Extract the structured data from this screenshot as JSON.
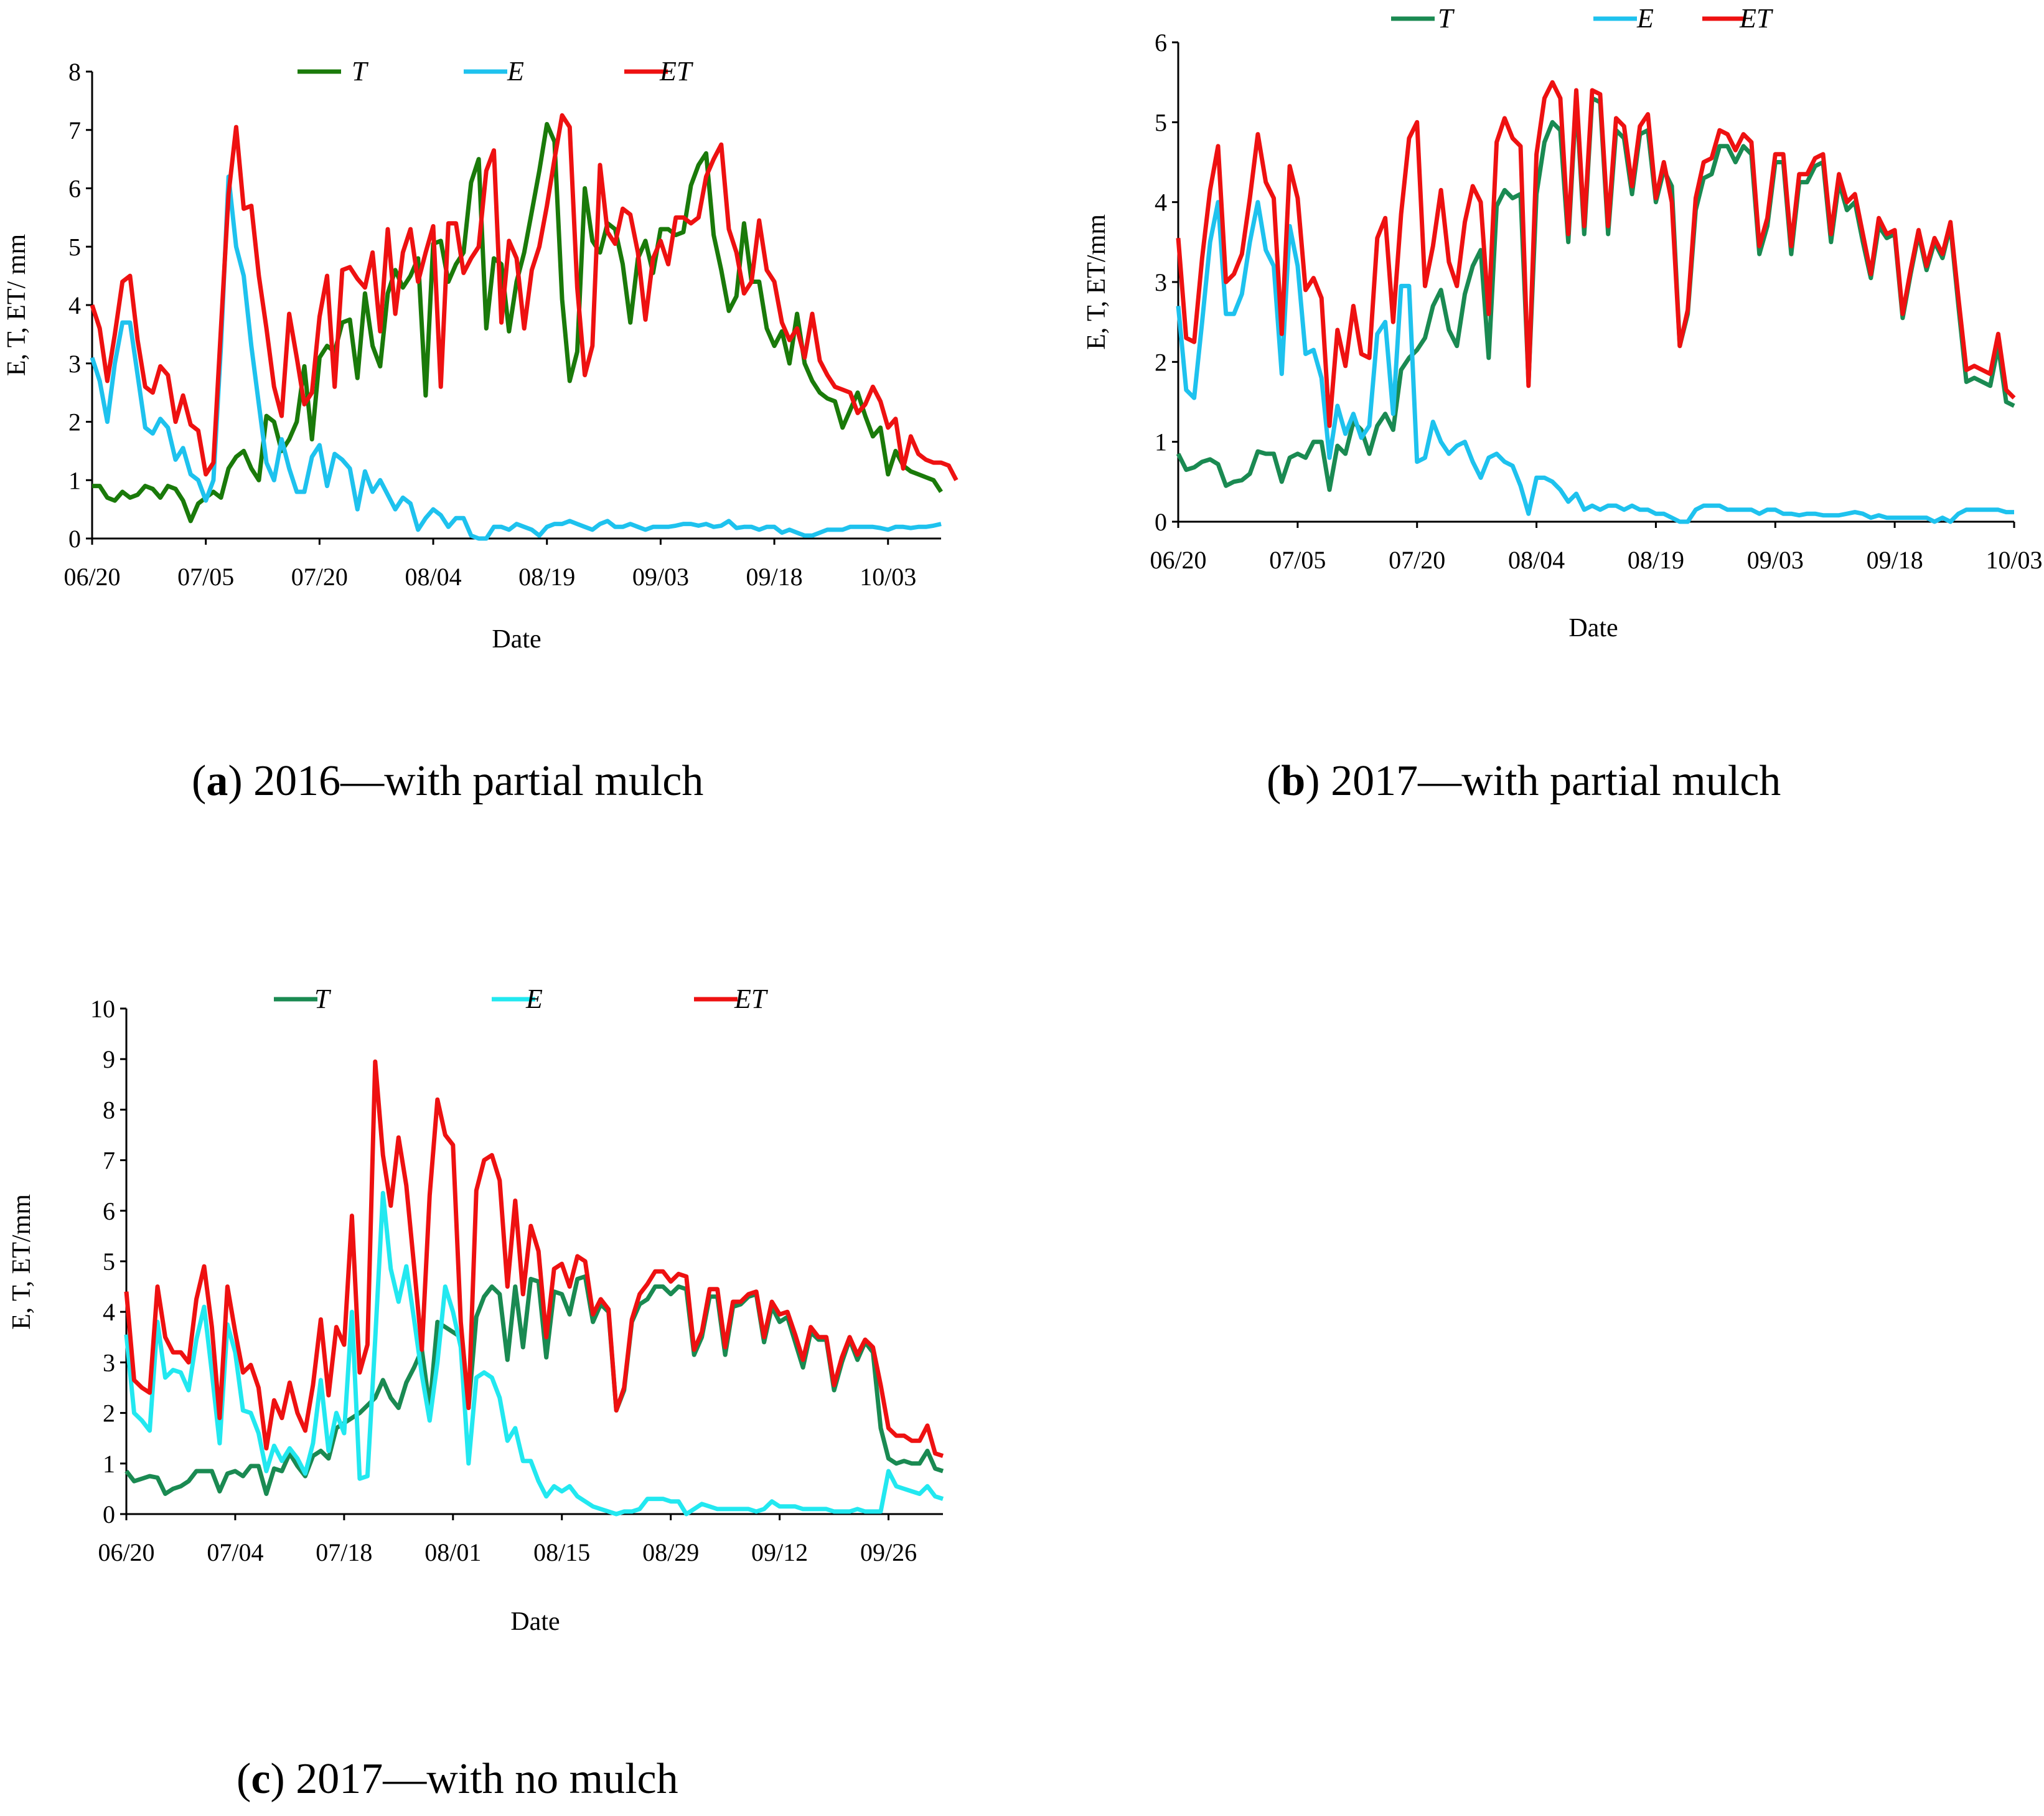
{
  "colors": {
    "T_a": "#1a7a0a",
    "T_bc": "#1a8a52",
    "E_ab": "#1ec2ee",
    "E_c": "#22e8f0",
    "ET": "#ee1111"
  },
  "captions": [
    {
      "letter": "a",
      "text": " 2016—with partial mulch"
    },
    {
      "letter": "b",
      "text": " 2017—with partial mulch"
    },
    {
      "letter": "c",
      "text": " 2017—with no mulch"
    }
  ],
  "chart_data": [
    {
      "id": "a",
      "type": "line",
      "xlabel": "Date",
      "ylabel": "E, T, ET/ mm",
      "ylim": [
        0,
        8
      ],
      "yticks": [
        0,
        1,
        2,
        3,
        4,
        5,
        6,
        7,
        8
      ],
      "xticks": [
        "06/20",
        "07/05",
        "07/20",
        "08/04",
        "08/19",
        "09/03",
        "09/18",
        "10/03"
      ],
      "start_date": "06/20",
      "legend": [
        "T",
        "E",
        "ET"
      ],
      "series": [
        {
          "name": "T",
          "values": [
            0.9,
            0.9,
            0.7,
            0.65,
            0.8,
            0.7,
            0.75,
            0.9,
            0.85,
            0.7,
            0.9,
            0.85,
            0.65,
            0.3,
            0.6,
            0.7,
            0.8,
            0.7,
            1.2,
            1.4,
            1.5,
            1.2,
            1.0,
            2.1,
            2.0,
            1.5,
            1.7,
            2.0,
            2.95,
            1.7,
            3.1,
            3.3,
            3.2,
            3.7,
            3.75,
            2.75,
            4.2,
            3.3,
            2.95,
            4.2,
            4.6,
            4.3,
            4.5,
            4.8,
            2.45,
            5.05,
            5.1,
            4.4,
            4.7,
            4.9,
            6.1,
            6.5,
            3.6,
            4.8,
            4.7,
            3.55,
            4.4,
            4.9,
            5.6,
            6.3,
            7.1,
            6.8,
            4.1,
            2.7,
            3.2,
            6.0,
            5.1,
            4.9,
            5.4,
            5.3,
            4.7,
            3.7,
            4.8,
            5.1,
            4.55,
            5.3,
            5.3,
            5.2,
            5.25,
            6.05,
            6.4,
            6.6,
            5.2,
            4.6,
            3.9,
            4.15,
            5.4,
            4.4,
            4.4,
            3.6,
            3.3,
            3.55,
            3.0,
            3.85,
            3.0,
            2.7,
            2.5,
            2.4,
            2.35,
            1.9,
            2.2,
            2.5,
            2.1,
            1.75,
            1.9,
            1.1,
            1.5,
            1.25,
            1.15,
            1.1,
            1.05,
            1.0,
            0.8
          ]
        },
        {
          "name": "E",
          "values": [
            3.1,
            2.7,
            2.0,
            3.0,
            3.7,
            3.7,
            2.8,
            1.9,
            1.8,
            2.05,
            1.9,
            1.35,
            1.55,
            1.1,
            1.0,
            0.65,
            1.0,
            3.3,
            6.2,
            5.0,
            4.5,
            3.3,
            2.3,
            1.3,
            1.0,
            1.7,
            1.2,
            0.8,
            0.8,
            1.4,
            1.6,
            0.9,
            1.45,
            1.35,
            1.2,
            0.5,
            1.15,
            0.8,
            1.0,
            0.75,
            0.5,
            0.7,
            0.6,
            0.15,
            0.35,
            0.5,
            0.4,
            0.2,
            0.35,
            0.35,
            0.05,
            0.0,
            0.0,
            0.2,
            0.2,
            0.15,
            0.25,
            0.2,
            0.15,
            0.05,
            0.2,
            0.25,
            0.25,
            0.3,
            0.25,
            0.2,
            0.15,
            0.25,
            0.3,
            0.2,
            0.2,
            0.25,
            0.2,
            0.15,
            0.2,
            0.2,
            0.2,
            0.22,
            0.25,
            0.25,
            0.22,
            0.25,
            0.2,
            0.22,
            0.3,
            0.18,
            0.2,
            0.2,
            0.15,
            0.2,
            0.2,
            0.1,
            0.15,
            0.1,
            0.05,
            0.05,
            0.1,
            0.15,
            0.15,
            0.15,
            0.2,
            0.2,
            0.2,
            0.2,
            0.18,
            0.15,
            0.2,
            0.2,
            0.18,
            0.2,
            0.2,
            0.22,
            0.25
          ]
        },
        {
          "name": "ET",
          "values": [
            4.0,
            3.6,
            2.7,
            3.5,
            4.4,
            4.5,
            3.4,
            2.6,
            2.5,
            2.95,
            2.8,
            2.0,
            2.45,
            1.95,
            1.85,
            1.1,
            1.3,
            3.6,
            5.9,
            7.05,
            5.65,
            5.7,
            4.5,
            3.6,
            2.6,
            2.1,
            3.85,
            3.1,
            2.3,
            2.5,
            3.8,
            4.5,
            2.6,
            4.6,
            4.65,
            4.45,
            4.3,
            4.9,
            3.55,
            5.3,
            3.85,
            4.9,
            5.3,
            4.4,
            4.9,
            5.35,
            2.6,
            5.4,
            5.4,
            4.55,
            4.8,
            5.0,
            6.3,
            6.65,
            3.7,
            5.1,
            4.8,
            3.6,
            4.6,
            5.0,
            5.7,
            6.5,
            7.25,
            7.05,
            4.3,
            2.8,
            3.3,
            6.4,
            5.25,
            5.05,
            5.65,
            5.55,
            4.9,
            3.75,
            4.8,
            5.1,
            4.7,
            5.5,
            5.5,
            5.4,
            5.5,
            6.2,
            6.5,
            6.75,
            5.3,
            4.9,
            4.2,
            4.4,
            5.45,
            4.6,
            4.4,
            3.7,
            3.4,
            3.6,
            3.1,
            3.85,
            3.05,
            2.8,
            2.6,
            2.55,
            2.5,
            2.15,
            2.3,
            2.6,
            2.35,
            1.9,
            2.05,
            1.2,
            1.75,
            1.45,
            1.35,
            1.3,
            1.3,
            1.25,
            1.0
          ]
        }
      ]
    },
    {
      "id": "b",
      "type": "line",
      "xlabel": "Date",
      "ylabel": "E, T, ET/mm",
      "ylim": [
        0,
        6
      ],
      "yticks": [
        0,
        1,
        2,
        3,
        4,
        5,
        6
      ],
      "xticks": [
        "06/20",
        "07/05",
        "07/20",
        "08/04",
        "08/19",
        "09/03",
        "09/18",
        "10/03"
      ],
      "start_date": "06/20",
      "legend": [
        "T",
        "E",
        "ET"
      ],
      "series": [
        {
          "name": "T",
          "values": [
            0.85,
            0.65,
            0.68,
            0.75,
            0.78,
            0.72,
            0.45,
            0.5,
            0.52,
            0.6,
            0.88,
            0.85,
            0.85,
            0.5,
            0.8,
            0.85,
            0.8,
            1.0,
            1.0,
            0.4,
            0.95,
            0.85,
            1.25,
            1.15,
            0.85,
            1.2,
            1.35,
            1.15,
            1.9,
            2.05,
            2.15,
            2.3,
            2.7,
            2.9,
            2.4,
            2.2,
            2.85,
            3.2,
            3.4,
            2.05,
            3.95,
            4.15,
            4.05,
            4.1,
            1.75,
            4.1,
            4.75,
            5.0,
            4.9,
            3.5,
            5.3,
            3.6,
            5.3,
            5.25,
            3.6,
            4.9,
            4.8,
            4.1,
            4.85,
            4.9,
            4.0,
            4.4,
            4.2,
            2.2,
            2.6,
            3.9,
            4.3,
            4.35,
            4.7,
            4.7,
            4.5,
            4.7,
            4.6,
            3.35,
            3.7,
            4.5,
            4.5,
            3.35,
            4.25,
            4.25,
            4.45,
            4.5,
            3.5,
            4.25,
            3.9,
            4.0,
            3.5,
            3.05,
            3.7,
            3.55,
            3.6,
            2.55,
            3.1,
            3.6,
            3.15,
            3.5,
            3.3,
            3.7,
            2.7,
            1.75,
            1.8,
            1.75,
            1.7,
            2.2,
            1.5,
            1.45
          ]
        },
        {
          "name": "E",
          "values": [
            2.7,
            1.65,
            1.55,
            2.5,
            3.5,
            4.0,
            2.6,
            2.6,
            2.85,
            3.5,
            4.0,
            3.4,
            3.2,
            1.85,
            3.7,
            3.2,
            2.1,
            2.15,
            1.8,
            0.8,
            1.45,
            1.1,
            1.35,
            1.05,
            1.2,
            2.35,
            2.5,
            1.35,
            2.95,
            2.95,
            0.75,
            0.8,
            1.25,
            1.0,
            0.85,
            0.95,
            1.0,
            0.75,
            0.55,
            0.8,
            0.85,
            0.75,
            0.7,
            0.45,
            0.1,
            0.55,
            0.55,
            0.5,
            0.4,
            0.25,
            0.35,
            0.15,
            0.2,
            0.15,
            0.2,
            0.2,
            0.15,
            0.2,
            0.15,
            0.15,
            0.1,
            0.1,
            0.05,
            0.0,
            0.0,
            0.15,
            0.2,
            0.2,
            0.2,
            0.15,
            0.15,
            0.15,
            0.15,
            0.1,
            0.15,
            0.15,
            0.1,
            0.1,
            0.08,
            0.1,
            0.1,
            0.08,
            0.08,
            0.08,
            0.1,
            0.12,
            0.1,
            0.05,
            0.08,
            0.05,
            0.05,
            0.05,
            0.05,
            0.05,
            0.05,
            0.0,
            0.05,
            0.0,
            0.1,
            0.15,
            0.15,
            0.15,
            0.15,
            0.15,
            0.12,
            0.12
          ]
        },
        {
          "name": "ET",
          "values": [
            3.55,
            2.3,
            2.25,
            3.3,
            4.15,
            4.7,
            3.0,
            3.1,
            3.35,
            4.05,
            4.85,
            4.25,
            4.05,
            2.35,
            4.45,
            4.05,
            2.9,
            3.05,
            2.8,
            1.2,
            2.4,
            1.95,
            2.7,
            2.1,
            2.05,
            3.55,
            3.8,
            2.5,
            3.85,
            4.8,
            5.0,
            2.95,
            3.45,
            4.15,
            3.25,
            2.95,
            3.75,
            4.2,
            4.0,
            2.6,
            4.75,
            5.05,
            4.8,
            4.7,
            1.7,
            4.6,
            5.3,
            5.5,
            5.3,
            3.6,
            5.4,
            3.7,
            5.4,
            5.35,
            3.7,
            5.05,
            4.95,
            4.2,
            4.95,
            5.1,
            4.05,
            4.5,
            4.0,
            2.2,
            2.65,
            4.05,
            4.5,
            4.55,
            4.9,
            4.85,
            4.65,
            4.85,
            4.75,
            3.45,
            3.8,
            4.6,
            4.6,
            3.45,
            4.35,
            4.35,
            4.55,
            4.6,
            3.6,
            4.35,
            4.0,
            4.1,
            3.6,
            3.1,
            3.8,
            3.6,
            3.65,
            2.6,
            3.15,
            3.65,
            3.2,
            3.55,
            3.35,
            3.75,
            2.8,
            1.9,
            1.95,
            1.9,
            1.85,
            2.35,
            1.65,
            1.55
          ]
        }
      ]
    },
    {
      "id": "c",
      "type": "line",
      "xlabel": "Date",
      "ylabel": "E, T, ET/mm",
      "ylim": [
        0,
        10
      ],
      "yticks": [
        0,
        1,
        2,
        3,
        4,
        5,
        6,
        7,
        8,
        9,
        10
      ],
      "xticks": [
        "06/20",
        "07/04",
        "07/18",
        "08/01",
        "08/15",
        "08/29",
        "09/12",
        "09/26"
      ],
      "start_date": "06/20",
      "legend": [
        "T",
        "E",
        "ET"
      ],
      "series": [
        {
          "name": "T",
          "values": [
            0.85,
            0.65,
            0.7,
            0.75,
            0.72,
            0.4,
            0.5,
            0.55,
            0.65,
            0.85,
            0.85,
            0.85,
            0.45,
            0.8,
            0.85,
            0.75,
            0.95,
            0.95,
            0.4,
            0.9,
            0.85,
            1.2,
            0.95,
            0.75,
            1.15,
            1.25,
            1.1,
            1.7,
            1.8,
            1.9,
            2.0,
            2.15,
            2.3,
            2.65,
            2.3,
            2.1,
            2.6,
            2.9,
            3.25,
            2.1,
            3.8,
            3.7,
            3.6,
            3.5,
            2.1,
            3.9,
            4.3,
            4.5,
            4.35,
            3.05,
            4.5,
            3.3,
            4.65,
            4.6,
            3.1,
            4.4,
            4.35,
            3.95,
            4.65,
            4.7,
            3.8,
            4.15,
            4.0,
            2.05,
            2.45,
            3.8,
            4.15,
            4.25,
            4.5,
            4.5,
            4.35,
            4.5,
            4.45,
            3.15,
            3.5,
            4.3,
            4.3,
            3.15,
            4.1,
            4.15,
            4.3,
            4.35,
            3.4,
            4.1,
            3.8,
            3.9,
            3.4,
            2.9,
            3.6,
            3.45,
            3.45,
            2.45,
            3.0,
            3.45,
            3.05,
            3.4,
            3.2,
            1.7,
            1.1,
            1.0,
            1.05,
            1.0,
            1.0,
            1.25,
            0.9,
            0.85
          ]
        },
        {
          "name": "E",
          "values": [
            3.55,
            2.0,
            1.85,
            1.65,
            3.8,
            2.7,
            2.85,
            2.8,
            2.45,
            3.45,
            4.1,
            2.8,
            1.4,
            3.75,
            3.2,
            2.05,
            2.0,
            1.6,
            0.85,
            1.35,
            1.05,
            1.3,
            1.1,
            0.8,
            1.4,
            2.65,
            1.25,
            2.0,
            1.6,
            4.0,
            0.7,
            0.75,
            3.45,
            6.35,
            4.85,
            4.2,
            4.9,
            3.85,
            2.75,
            1.85,
            3.0,
            4.5,
            4.0,
            3.3,
            1.0,
            2.7,
            2.8,
            2.7,
            2.3,
            1.45,
            1.7,
            1.05,
            1.05,
            0.65,
            0.35,
            0.55,
            0.45,
            0.55,
            0.35,
            0.25,
            0.15,
            0.1,
            0.05,
            0.0,
            0.05,
            0.05,
            0.1,
            0.3,
            0.3,
            0.3,
            0.25,
            0.25,
            0.0,
            0.1,
            0.2,
            0.15,
            0.1,
            0.1,
            0.1,
            0.1,
            0.1,
            0.05,
            0.1,
            0.25,
            0.15,
            0.15,
            0.15,
            0.1,
            0.1,
            0.1,
            0.1,
            0.05,
            0.05,
            0.05,
            0.1,
            0.05,
            0.05,
            0.05,
            0.85,
            0.55,
            0.5,
            0.45,
            0.4,
            0.55,
            0.35,
            0.3
          ]
        },
        {
          "name": "ET",
          "values": [
            4.4,
            2.65,
            2.5,
            2.4,
            4.5,
            3.5,
            3.2,
            3.2,
            3.0,
            4.25,
            4.9,
            3.7,
            1.9,
            4.5,
            3.6,
            2.8,
            2.95,
            2.5,
            1.3,
            2.25,
            1.9,
            2.6,
            2.0,
            1.65,
            2.55,
            3.85,
            2.35,
            3.7,
            3.35,
            5.9,
            2.8,
            3.35,
            8.95,
            7.1,
            6.1,
            7.45,
            6.5,
            4.9,
            3.25,
            6.3,
            8.2,
            7.5,
            7.3,
            3.8,
            2.1,
            6.4,
            7.0,
            7.1,
            6.6,
            4.5,
            6.2,
            4.35,
            5.7,
            5.2,
            3.5,
            4.85,
            4.95,
            4.5,
            5.1,
            5.0,
            3.95,
            4.25,
            4.05,
            2.05,
            2.5,
            3.85,
            4.35,
            4.55,
            4.8,
            4.8,
            4.6,
            4.75,
            4.7,
            3.25,
            3.6,
            4.45,
            4.45,
            3.3,
            4.2,
            4.2,
            4.35,
            4.4,
            3.5,
            4.2,
            3.95,
            4.0,
            3.55,
            3.05,
            3.7,
            3.5,
            3.5,
            2.55,
            3.1,
            3.5,
            3.15,
            3.45,
            3.3,
            2.55,
            1.7,
            1.55,
            1.55,
            1.45,
            1.45,
            1.75,
            1.2,
            1.15
          ]
        }
      ]
    }
  ]
}
